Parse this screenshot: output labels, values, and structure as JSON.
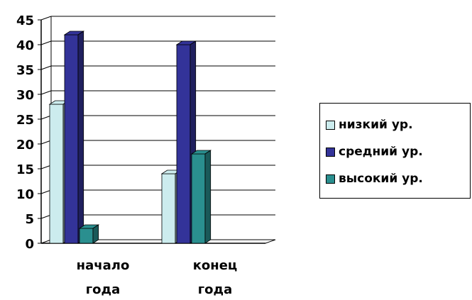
{
  "chart_data": {
    "type": "bar",
    "categories": [
      [
        "начало",
        "года"
      ],
      [
        "конец",
        "года"
      ]
    ],
    "series": [
      {
        "name": "низкий ур.",
        "values": [
          28,
          14
        ],
        "color": "#CCECEE"
      },
      {
        "name": "средний ур.",
        "values": [
          42,
          40
        ],
        "color": "#333399"
      },
      {
        "name": "высокий ур.",
        "values": [
          3,
          18
        ],
        "color": "#2A8F8F"
      }
    ],
    "ylim": [
      0,
      45
    ],
    "yticks": [
      "0",
      "5",
      "10",
      "15",
      "20",
      "25",
      "30",
      "35",
      "40",
      "45"
    ],
    "grid": true,
    "three_d": true,
    "legend_position": "right"
  }
}
